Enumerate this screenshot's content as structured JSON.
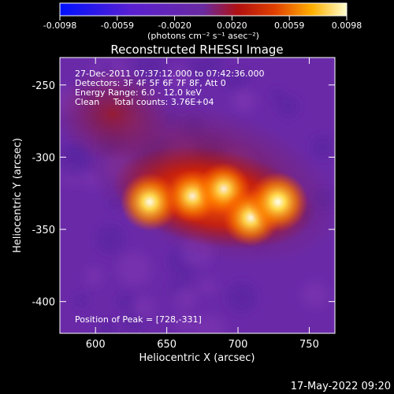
{
  "colorbar": {
    "ticks": [
      "-0.0098",
      "-0.0059",
      "-0.0020",
      "0.0020",
      "0.0059",
      "0.0098"
    ],
    "unit_label": "(photons cm⁻² s⁻¹ asec⁻²)"
  },
  "title": "Reconstructed RHESSI Image",
  "annotations": {
    "time_range": "27-Dec-2011 07:37:12.000 to 07:42:36.000",
    "detectors": "Detectors: 3F 4F 5F 6F 7F 8F, Att 0",
    "energy": "Energy Range: 6.0 - 12.0 keV",
    "clean": "Clean     Total counts: 3.76E+04",
    "peak": "Position of Peak = [728,-331]"
  },
  "footer_timestamp": "17-May-2022 09:20",
  "colors": {
    "background": "#000000",
    "axis": "#ffffff",
    "cmap_negative": "#1010ff",
    "cmap_zero": "#6a2aa8",
    "cmap_positive_low": "#c01010",
    "cmap_positive_high": "#ffffc0"
  },
  "chart_data": {
    "type": "heatmap",
    "title": "Reconstructed RHESSI Image",
    "xlabel": "Heliocentric X (arcsec)",
    "ylabel": "Heliocentric Y (arcsec)",
    "xlim": [
      575,
      768
    ],
    "ylim": [
      -422,
      -231
    ],
    "x_ticks": [
      600,
      650,
      700,
      750
    ],
    "y_ticks": [
      -250,
      -300,
      -350,
      -400
    ],
    "colorbar_range": [
      -0.0098,
      0.0098
    ],
    "peak": {
      "x": 728,
      "y": -331
    },
    "sources": [
      {
        "x": 638,
        "y": -331,
        "relative_intensity": 0.95
      },
      {
        "x": 668,
        "y": -327,
        "relative_intensity": 0.8
      },
      {
        "x": 690,
        "y": -322,
        "relative_intensity": 0.78
      },
      {
        "x": 709,
        "y": -342,
        "relative_intensity": 0.9
      },
      {
        "x": 728,
        "y": -331,
        "relative_intensity": 1.0
      }
    ]
  }
}
